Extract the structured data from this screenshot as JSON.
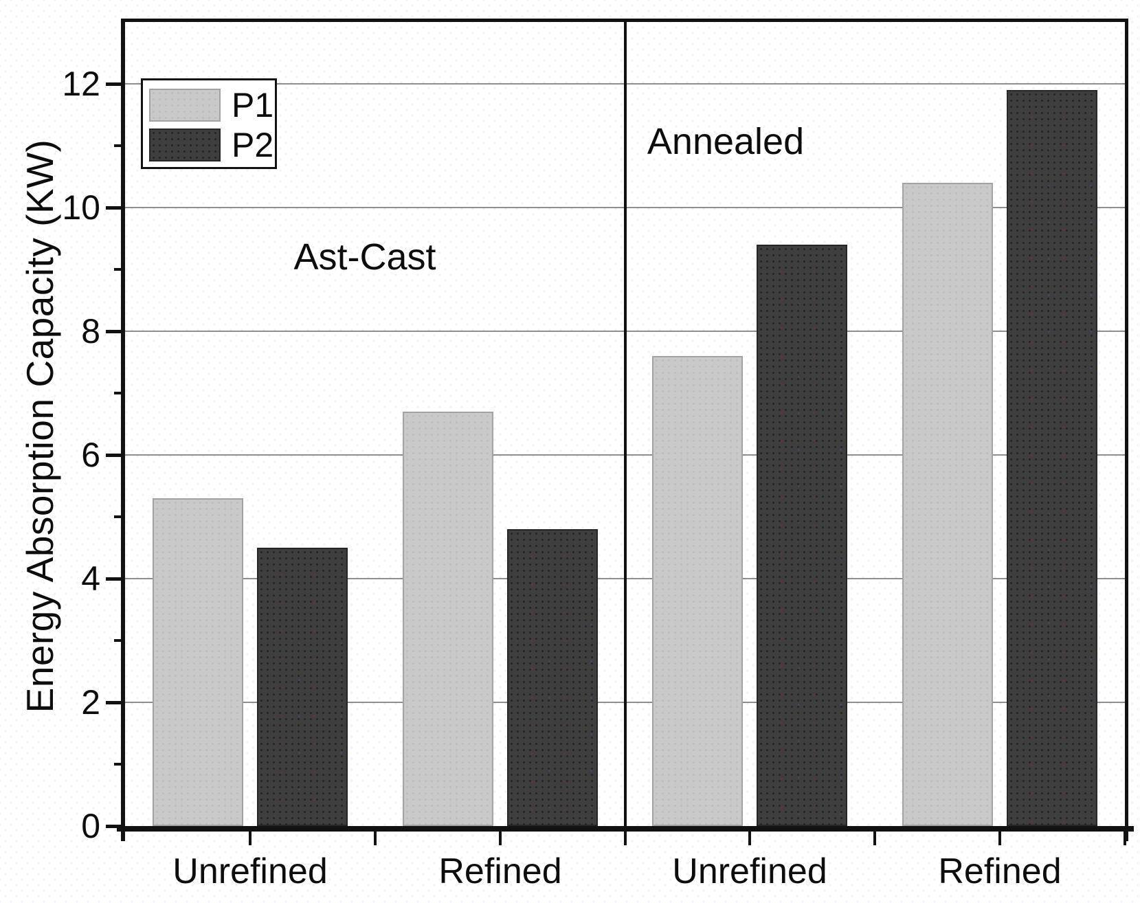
{
  "chart_data": {
    "type": "bar",
    "title": "",
    "ylabel": "Energy Absorption Capacity (KW)",
    "xlabel": "",
    "ylim": [
      0,
      13
    ],
    "yticks": [
      0,
      2,
      4,
      6,
      8,
      10,
      12
    ],
    "yticks_minor": [
      1,
      3,
      5,
      7,
      9,
      11
    ],
    "grid": "horizontal",
    "legend_position": "top-left",
    "legend": [
      {
        "name": "P1",
        "color": "#c9c9c9"
      },
      {
        "name": "P2",
        "color": "#3e3e3e"
      }
    ],
    "panels": [
      {
        "label": "Ast-Cast",
        "categories": [
          "Unrefined",
          "Refined"
        ],
        "series": [
          {
            "name": "P1",
            "values": [
              5.3,
              6.7
            ]
          },
          {
            "name": "P2",
            "values": [
              4.5,
              4.8
            ]
          }
        ]
      },
      {
        "label": "Annealed",
        "categories": [
          "Unrefined",
          "Refined"
        ],
        "series": [
          {
            "name": "P1",
            "values": [
              7.6,
              10.4
            ]
          },
          {
            "name": "P2",
            "values": [
              9.4,
              11.9
            ]
          }
        ]
      }
    ],
    "colors": {
      "P1": "#c9c9c9",
      "P2": "#3e3e3e",
      "grid": "#8d8d8d",
      "axis": "#121212",
      "background": "#ffffff"
    }
  }
}
